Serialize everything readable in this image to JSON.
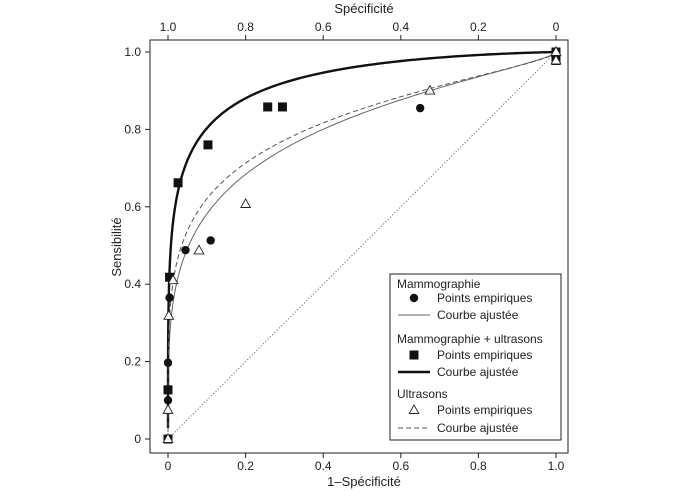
{
  "chart_data": {
    "type": "scatter",
    "title": "",
    "xlabel": "1–Spécificité",
    "ylabel": "Sensibilité",
    "x2label": "Spécificité",
    "xlim": [
      0,
      1
    ],
    "ylim": [
      0,
      1
    ],
    "xticks": [
      {
        "value": 0,
        "label": "0"
      },
      {
        "value": 0.2,
        "label": "0.2"
      },
      {
        "value": 0.4,
        "label": "0.4"
      },
      {
        "value": 0.6,
        "label": "0.6"
      },
      {
        "value": 0.8,
        "label": "0.8"
      },
      {
        "value": 1.0,
        "label": "1.0"
      }
    ],
    "x2ticks": [
      {
        "value": 0,
        "label": "1.0"
      },
      {
        "value": 0.2,
        "label": "0.8"
      },
      {
        "value": 0.4,
        "label": "0.6"
      },
      {
        "value": 0.6,
        "label": "0.4"
      },
      {
        "value": 0.8,
        "label": "0.2"
      },
      {
        "value": 1.0,
        "label": "0"
      }
    ],
    "yticks": [
      {
        "value": 0,
        "label": "0"
      },
      {
        "value": 0.2,
        "label": "0.2"
      },
      {
        "value": 0.4,
        "label": "0.4"
      },
      {
        "value": 0.6,
        "label": "0.6"
      },
      {
        "value": 0.8,
        "label": "0.8"
      },
      {
        "value": 1.0,
        "label": "1.0"
      }
    ],
    "series": [
      {
        "id": "mammo",
        "name": "Mammographie",
        "marker": "circle",
        "line_style": "thin",
        "points_label": "Points empiriques",
        "fit_label": "Courbe ajustée",
        "points": [
          {
            "x": 0.0,
            "y": 0.0
          },
          {
            "x": 0.0,
            "y": 0.1
          },
          {
            "x": 0.0,
            "y": 0.197
          },
          {
            "x": 0.004,
            "y": 0.365
          },
          {
            "x": 0.045,
            "y": 0.488
          },
          {
            "x": 0.11,
            "y": 0.513
          },
          {
            "x": 0.65,
            "y": 0.855
          },
          {
            "x": 1.0,
            "y": 0.978
          },
          {
            "x": 1.0,
            "y": 1.0
          }
        ],
        "fit_params": {
          "a": 1.0,
          "b": 0.62
        }
      },
      {
        "id": "combo",
        "name": "Mammographie + ultrasons",
        "marker": "square",
        "line_style": "thick",
        "points_label": "Points empiriques",
        "fit_label": "Courbe ajustée",
        "points": [
          {
            "x": 0.0,
            "y": 0.0
          },
          {
            "x": 0.0,
            "y": 0.127
          },
          {
            "x": 0.004,
            "y": 0.418
          },
          {
            "x": 0.026,
            "y": 0.662
          },
          {
            "x": 0.103,
            "y": 0.76
          },
          {
            "x": 0.257,
            "y": 0.858
          },
          {
            "x": 0.295,
            "y": 0.858
          },
          {
            "x": 1.0,
            "y": 0.978
          },
          {
            "x": 1.0,
            "y": 1.0
          }
        ],
        "fit_params": {
          "a": 1.8,
          "b": 0.74
        }
      },
      {
        "id": "us",
        "name": "Ultrasons",
        "marker": "triangle",
        "line_style": "dashed",
        "points_label": "Points empiriques",
        "fit_label": "Courbe ajustée",
        "points": [
          {
            "x": 0.0,
            "y": 0.0
          },
          {
            "x": 0.0,
            "y": 0.075
          },
          {
            "x": 0.002,
            "y": 0.318
          },
          {
            "x": 0.013,
            "y": 0.41
          },
          {
            "x": 0.08,
            "y": 0.487
          },
          {
            "x": 0.2,
            "y": 0.607
          },
          {
            "x": 0.675,
            "y": 0.9
          },
          {
            "x": 1.0,
            "y": 0.978
          },
          {
            "x": 1.0,
            "y": 1.0
          }
        ],
        "fit_params": {
          "a": 1.05,
          "b": 0.58
        }
      }
    ],
    "reference_line": {
      "from": [
        0,
        0
      ],
      "to": [
        1,
        1
      ],
      "style": "dotted"
    },
    "legend_position": "bottom-right",
    "grid": false
  }
}
